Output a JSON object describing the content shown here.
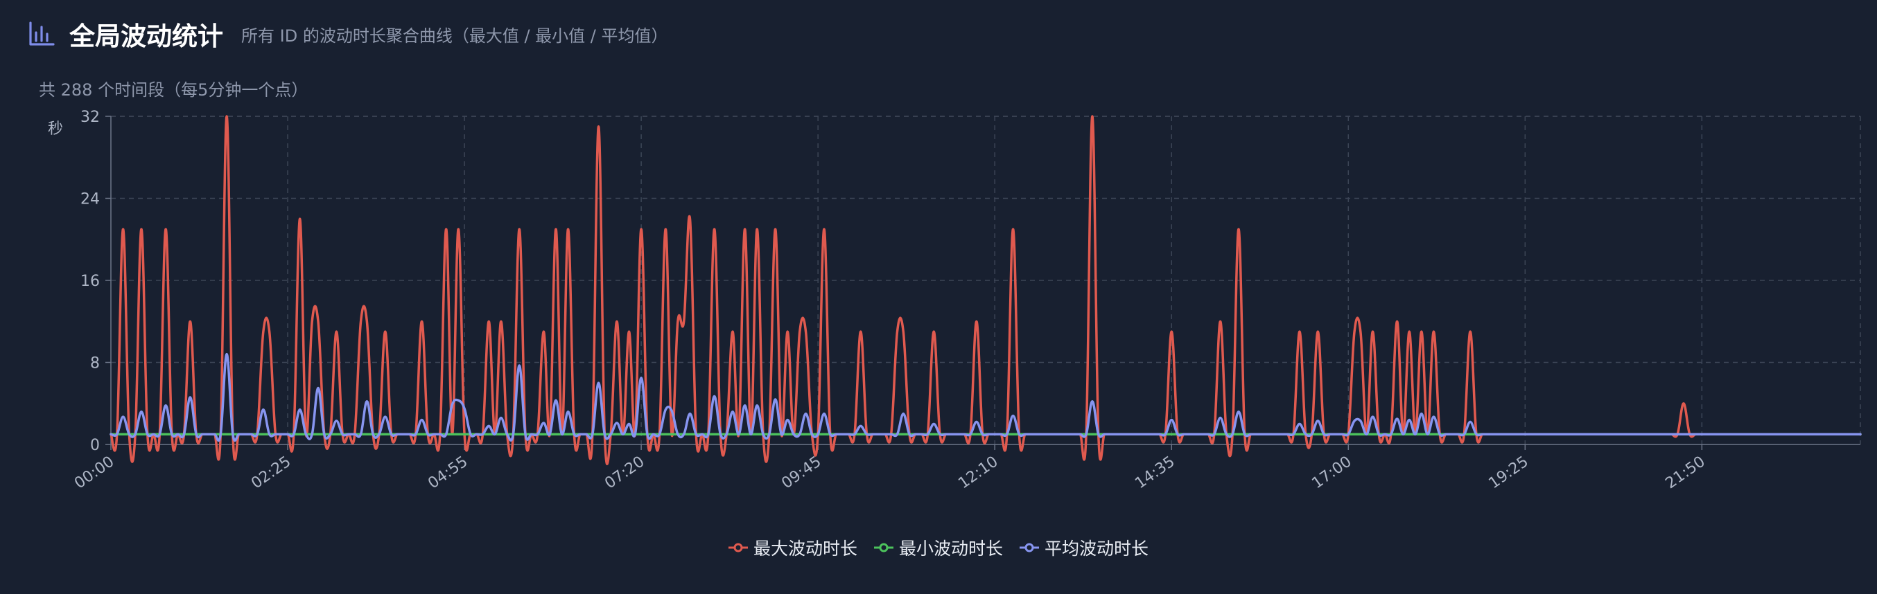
{
  "header": {
    "title": "全局波动统计",
    "subtitle": "所有 ID 的波动时长聚合曲线（最大值 / 最小值 / 平均值）",
    "count_text": "共 288 个时间段（每5分钟一个点）"
  },
  "colors": {
    "max": "#e05a4f",
    "min": "#4cc25c",
    "avg": "#8795f0",
    "icon": "#7f8dea",
    "grid": "#3c4556",
    "text": "#aeb6c6"
  },
  "icon": "bar-chart-icon",
  "chart_data": {
    "type": "line",
    "total_points": 288,
    "ylabel": "秒",
    "ylim": [
      0,
      32
    ],
    "y_ticks": [
      0,
      8,
      16,
      24,
      32
    ],
    "x_ticks": [
      "00:00",
      "02:25",
      "04:55",
      "07:20",
      "09:45",
      "12:10",
      "14:35",
      "17:00",
      "19:25",
      "21:50"
    ],
    "legend_position": "bottom-center",
    "grid": true,
    "series": [
      {
        "name": "最大波动时长",
        "color": "#e05a4f",
        "baseline": 1,
        "peaks": [
          [
            2,
            21
          ],
          [
            5,
            21
          ],
          [
            9,
            21
          ],
          [
            13,
            12
          ],
          [
            19,
            32
          ],
          [
            25,
            11
          ],
          [
            26,
            11
          ],
          [
            31,
            22
          ],
          [
            33,
            12
          ],
          [
            34,
            12
          ],
          [
            37,
            11
          ],
          [
            41,
            12
          ],
          [
            42,
            12
          ],
          [
            45,
            11
          ],
          [
            51,
            12
          ],
          [
            55,
            21
          ],
          [
            57,
            21
          ],
          [
            62,
            12
          ],
          [
            64,
            12
          ],
          [
            67,
            21
          ],
          [
            71,
            11
          ],
          [
            73,
            21
          ],
          [
            75,
            21
          ],
          [
            80,
            31
          ],
          [
            83,
            12
          ],
          [
            85,
            11
          ],
          [
            87,
            21
          ],
          [
            91,
            21
          ],
          [
            93,
            12
          ],
          [
            94,
            12
          ],
          [
            95,
            22
          ],
          [
            99,
            21
          ],
          [
            102,
            11
          ],
          [
            104,
            21
          ],
          [
            106,
            21
          ],
          [
            109,
            21
          ],
          [
            111,
            11
          ],
          [
            113,
            11
          ],
          [
            114,
            11
          ],
          [
            117,
            21
          ],
          [
            123,
            11
          ],
          [
            129,
            11
          ],
          [
            130,
            11
          ],
          [
            135,
            11
          ],
          [
            142,
            12
          ],
          [
            148,
            21
          ],
          [
            161,
            32
          ],
          [
            174,
            11
          ],
          [
            182,
            12
          ],
          [
            185,
            21
          ],
          [
            195,
            11
          ],
          [
            198,
            11
          ],
          [
            204,
            11
          ],
          [
            205,
            11
          ],
          [
            207,
            11
          ],
          [
            211,
            12
          ],
          [
            213,
            11
          ],
          [
            215,
            11
          ],
          [
            217,
            11
          ],
          [
            223,
            11
          ],
          [
            258,
            4
          ]
        ]
      },
      {
        "name": "最小波动时长",
        "color": "#4cc25c",
        "baseline": 1,
        "peaks": []
      },
      {
        "name": "平均波动时长",
        "color": "#8795f0",
        "baseline": 1,
        "peaks": [
          [
            2,
            2.7
          ],
          [
            5,
            3.2
          ],
          [
            9,
            3.8
          ],
          [
            13,
            4.6
          ],
          [
            19,
            8.8
          ],
          [
            25,
            3.4
          ],
          [
            31,
            3.4
          ],
          [
            34,
            5.5
          ],
          [
            37,
            2.3
          ],
          [
            42,
            4.2
          ],
          [
            45,
            2.7
          ],
          [
            51,
            2.4
          ],
          [
            56,
            3.9
          ],
          [
            57,
            4.3
          ],
          [
            58,
            3.5
          ],
          [
            62,
            1.8
          ],
          [
            64,
            2.6
          ],
          [
            67,
            7.7
          ],
          [
            71,
            2.1
          ],
          [
            73,
            4.3
          ],
          [
            75,
            3.2
          ],
          [
            80,
            6.0
          ],
          [
            83,
            2.1
          ],
          [
            85,
            2.0
          ],
          [
            87,
            6.5
          ],
          [
            91,
            3.4
          ],
          [
            92,
            3.3
          ],
          [
            95,
            3.0
          ],
          [
            99,
            4.7
          ],
          [
            102,
            3.2
          ],
          [
            104,
            3.8
          ],
          [
            106,
            3.8
          ],
          [
            109,
            4.4
          ],
          [
            111,
            2.4
          ],
          [
            114,
            3.0
          ],
          [
            117,
            3.0
          ],
          [
            123,
            1.8
          ],
          [
            130,
            3.0
          ],
          [
            135,
            2.0
          ],
          [
            142,
            2.2
          ],
          [
            148,
            2.8
          ],
          [
            161,
            4.2
          ],
          [
            174,
            2.4
          ],
          [
            182,
            2.6
          ],
          [
            185,
            3.2
          ],
          [
            195,
            2.0
          ],
          [
            198,
            2.3
          ],
          [
            204,
            2.3
          ],
          [
            205,
            2.3
          ],
          [
            207,
            2.7
          ],
          [
            211,
            2.5
          ],
          [
            213,
            2.4
          ],
          [
            215,
            3.0
          ],
          [
            217,
            2.7
          ],
          [
            223,
            2.2
          ]
        ]
      }
    ]
  }
}
